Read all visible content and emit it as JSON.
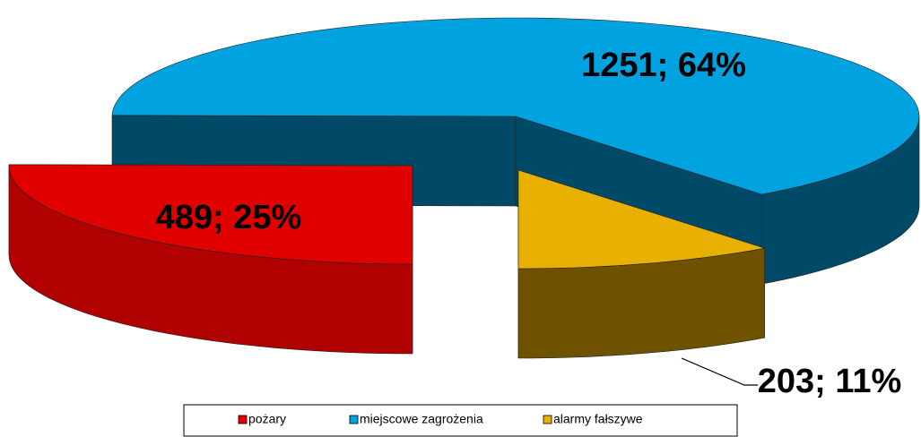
{
  "chart_data": {
    "type": "pie3d",
    "categories": [
      "pożary",
      "miejscowe zagrożenia",
      "alarmy fałszywe"
    ],
    "values": [
      489,
      1251,
      203
    ],
    "value_labels": [
      "489; 25%",
      "1251; 64%",
      "203; 11%"
    ],
    "colors": [
      "#e00000",
      "#00a2e0",
      "#e8b000"
    ],
    "side_colors": [
      "#b00000",
      "#004a68",
      "#6e5200"
    ],
    "legend": "bottom"
  }
}
